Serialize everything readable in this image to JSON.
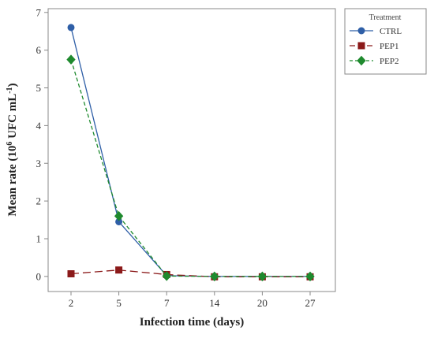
{
  "chart_data": {
    "type": "line",
    "title": "",
    "xlabel": "Infection time (days)",
    "ylabel_base": "Mean rate (10",
    "ylabel_sup1": "6",
    "ylabel_mid": " UFC mL",
    "ylabel_sup2": "-1",
    "ylabel_end": ")",
    "categories": [
      "2",
      "5",
      "7",
      "14",
      "20",
      "27"
    ],
    "yticks": [
      "0",
      "1",
      "2",
      "3",
      "4",
      "5",
      "6",
      "7"
    ],
    "ylim": [
      -0.4,
      7.1
    ],
    "grid": false,
    "legend_position": "right",
    "legend_title": "Treatment",
    "series": [
      {
        "name": "CTRL",
        "values": [
          6.6,
          1.45,
          0.02,
          0.0,
          0.0,
          0.0
        ],
        "color": "#2f5fa7",
        "marker": "circle",
        "dash": "solid"
      },
      {
        "name": "PEP1",
        "values": [
          0.07,
          0.17,
          0.05,
          -0.01,
          -0.01,
          -0.01
        ],
        "color": "#8b1a1a",
        "marker": "square",
        "dash": "long-dash"
      },
      {
        "name": "PEP2",
        "values": [
          5.75,
          1.6,
          0.01,
          0.0,
          0.0,
          0.0
        ],
        "color": "#1f8a2e",
        "marker": "diamond",
        "dash": "short-dash"
      }
    ]
  }
}
